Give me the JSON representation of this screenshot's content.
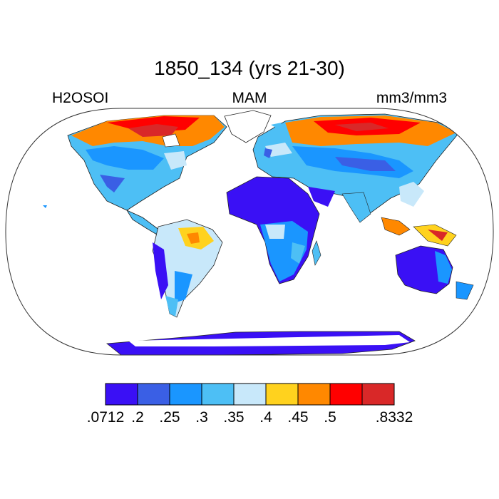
{
  "title": "1850_134 (yrs 21-30)",
  "left_label": "H2OSOI",
  "center_label": "MAM",
  "right_label": "mm3/mm3",
  "colorbar": {
    "colors": [
      "#3a10f5",
      "#3a5fe5",
      "#1a96ff",
      "#4dbff5",
      "#c8e8fa",
      "#ffd21e",
      "#ff8800",
      "#ff0000",
      "#d92828"
    ],
    "labels": [
      ".0712",
      ".2",
      ".25",
      ".3",
      ".35",
      ".4",
      ".45",
      ".5",
      "",
      ".8332"
    ]
  }
}
